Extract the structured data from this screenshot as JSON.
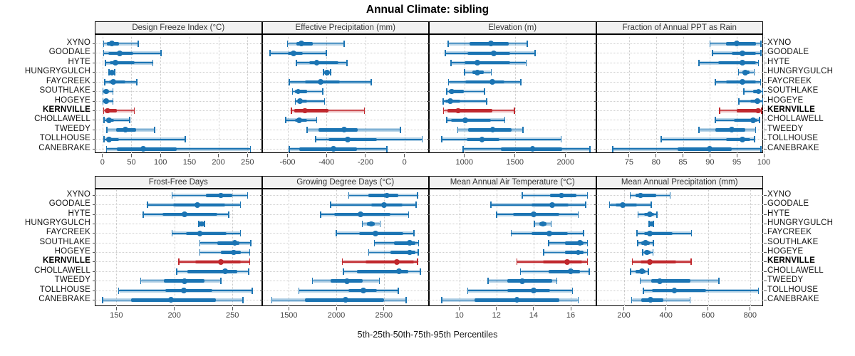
{
  "title": "Annual Climate: sibling",
  "caption": "5th-25th-50th-75th-95th Percentiles",
  "highlight_site": "KERNVILLE",
  "colors": {
    "series": "#1b74b3",
    "highlight": "#c0282d",
    "band_opacity": 0.3,
    "grid": "#c9c9c9",
    "row_guide": "#cfcfcf",
    "header_bg": "#f2f2f2",
    "panel_border": "#000000",
    "tick": "#555555",
    "tick_label": "#404040",
    "header_text": "#333333",
    "site_label": "#111111"
  },
  "chart_data": {
    "type": "scatter",
    "subtype": "percentile-interval-dotplot",
    "layout": "2 rows x 4 columns of panels, shared site rows, site labels on both sides",
    "percentile_levels": [
      5,
      25,
      50,
      75,
      95
    ],
    "legend": "thin line with end caps = 5th-95th, thick line = 25th-75th, dot = 50th (median)",
    "categories": [
      "XYNO",
      "GOODALE",
      "HYTE",
      "HUNGRYGULCH",
      "FAYCREEK",
      "SOUTHLAKE",
      "HOGEYE",
      "KERNVILLE",
      "CHOLLAWELL",
      "TWEEDY",
      "TOLLHOUSE",
      "CANEBRAKE"
    ],
    "panels": [
      {
        "title": "Design Freeze Index (°C)",
        "xlim": [
          -12,
          276
        ],
        "ticks": [
          0,
          50,
          100,
          150,
          200,
          250
        ],
        "values": [
          [
            2,
            8,
            16,
            28,
            62
          ],
          [
            2,
            10,
            30,
            53,
            101
          ],
          [
            5,
            13,
            22,
            55,
            87
          ],
          [
            11,
            14,
            16,
            19,
            21
          ],
          [
            4,
            11,
            19,
            40,
            59
          ],
          [
            1,
            3,
            6,
            10,
            18
          ],
          [
            1,
            3,
            6,
            9,
            18
          ],
          [
            2,
            5,
            9,
            25,
            55
          ],
          [
            3,
            7,
            11,
            20,
            47
          ],
          [
            8,
            24,
            40,
            58,
            90
          ],
          [
            3,
            7,
            11,
            28,
            143
          ],
          [
            7,
            25,
            70,
            128,
            255
          ]
        ]
      },
      {
        "title": "Effective Precipitation (mm)",
        "xlim": [
          -728,
          129
        ],
        "ticks": [
          -600,
          -400,
          -200,
          0
        ],
        "values": [
          [
            -600,
            -555,
            -530,
            -470,
            -310
          ],
          [
            -690,
            -600,
            -570,
            -520,
            -400
          ],
          [
            -555,
            -490,
            -450,
            -340,
            -295
          ],
          [
            -415,
            -402,
            -396,
            -390,
            -378
          ],
          [
            -590,
            -510,
            -430,
            -330,
            -170
          ],
          [
            -575,
            -560,
            -545,
            -500,
            -420
          ],
          [
            -560,
            -545,
            -535,
            -500,
            -410
          ],
          [
            -580,
            -565,
            -510,
            -390,
            -205
          ],
          [
            -610,
            -560,
            -540,
            -500,
            -450
          ],
          [
            -500,
            -440,
            -310,
            -240,
            -20
          ],
          [
            -455,
            -390,
            -290,
            -140,
            90
          ],
          [
            -590,
            -540,
            -365,
            -245,
            -90
          ]
        ]
      },
      {
        "title": "Elevation (m)",
        "xlim": [
          657,
          2308
        ],
        "ticks": [
          1000,
          1500,
          2000
        ],
        "values": [
          [
            840,
            1050,
            1260,
            1440,
            1620
          ],
          [
            810,
            1030,
            1290,
            1450,
            1700
          ],
          [
            870,
            1000,
            1130,
            1450,
            1610
          ],
          [
            1000,
            1080,
            1130,
            1190,
            1265
          ],
          [
            845,
            1010,
            1275,
            1395,
            1560
          ],
          [
            825,
            850,
            875,
            995,
            1200
          ],
          [
            790,
            815,
            860,
            960,
            1220
          ],
          [
            795,
            830,
            940,
            1275,
            1495
          ],
          [
            825,
            870,
            1010,
            1265,
            1400
          ],
          [
            935,
            1040,
            1280,
            1465,
            1580
          ],
          [
            775,
            1020,
            1175,
            1350,
            1955
          ],
          [
            990,
            1360,
            1675,
            1970,
            2240
          ]
        ]
      },
      {
        "title": "Fraction of Annual PPT as Rain",
        "xlim": [
          69,
          100
        ],
        "ticks": [
          75,
          80,
          85,
          90,
          95,
          100
        ],
        "values": [
          [
            90,
            93,
            95,
            98.5,
            99.5
          ],
          [
            90.5,
            94,
            96,
            98.5,
            99.5
          ],
          [
            88,
            91.5,
            96,
            98.5,
            99
          ],
          [
            95.3,
            96,
            96.6,
            97.3,
            98.2
          ],
          [
            91,
            93,
            96,
            98.5,
            99.4
          ],
          [
            96.3,
            98,
            99,
            99.5,
            99.8
          ],
          [
            95.4,
            97.5,
            98.8,
            99.4,
            99.8
          ],
          [
            91.8,
            95,
            98.9,
            99.3,
            99.6
          ],
          [
            91,
            94.5,
            98,
            98.8,
            99.2
          ],
          [
            88,
            91,
            94,
            96.5,
            98.5
          ],
          [
            81,
            93,
            96,
            97.5,
            98.3
          ],
          [
            72,
            84,
            90,
            94,
            99.5
          ]
        ]
      },
      {
        "title": "Frost-Free Days",
        "xlim": [
          132,
          276
        ],
        "ticks": [
          150,
          200,
          250
        ],
        "values": [
          [
            198,
            227,
            240,
            250,
            263
          ],
          [
            177,
            199,
            220,
            244,
            257
          ],
          [
            173,
            190,
            209,
            237,
            247
          ],
          [
            221,
            222.5,
            223.5,
            225,
            226
          ],
          [
            198,
            210,
            222,
            245,
            257
          ],
          [
            222,
            237,
            252,
            256,
            266
          ],
          [
            222,
            240,
            251,
            257,
            265
          ],
          [
            204,
            218,
            240,
            257,
            265
          ],
          [
            202,
            211,
            244,
            254,
            264
          ],
          [
            171,
            191,
            209,
            226,
            240
          ],
          [
            152,
            192,
            208,
            233,
            267
          ],
          [
            138,
            163,
            197,
            236,
            259
          ]
        ]
      },
      {
        "title": "Growing Degree Days (°C)",
        "xlim": [
          1224,
          2982
        ],
        "ticks": [
          1500,
          2000,
          2500
        ],
        "values": [
          [
            2130,
            2340,
            2530,
            2650,
            2855
          ],
          [
            1940,
            2370,
            2505,
            2700,
            2840
          ],
          [
            1835,
            1980,
            2255,
            2570,
            2760
          ],
          [
            2275,
            2320,
            2365,
            2405,
            2460
          ],
          [
            2000,
            2240,
            2410,
            2705,
            2815
          ],
          [
            2400,
            2605,
            2775,
            2830,
            2865
          ],
          [
            2340,
            2570,
            2775,
            2830,
            2860
          ],
          [
            2065,
            2305,
            2640,
            2815,
            2855
          ],
          [
            2075,
            2215,
            2660,
            2755,
            2885
          ],
          [
            1750,
            1940,
            2110,
            2280,
            2455
          ],
          [
            1605,
            2130,
            2285,
            2430,
            2650
          ],
          [
            1320,
            1670,
            2100,
            2500,
            2735
          ]
        ]
      },
      {
        "title": "Mean Annual Air Temperature (°C)",
        "xlim": [
          8.4,
          17.4
        ],
        "ticks": [
          10,
          12,
          14,
          16
        ],
        "values": [
          [
            13.4,
            14.9,
            15.5,
            16.3,
            16.9
          ],
          [
            11.7,
            13.9,
            15.0,
            15.9,
            16.8
          ],
          [
            12.0,
            12.9,
            14.0,
            15.4,
            16.4
          ],
          [
            14.05,
            14.3,
            14.5,
            14.7,
            14.95
          ],
          [
            12.8,
            13.9,
            14.85,
            15.85,
            16.7
          ],
          [
            14.8,
            15.7,
            16.5,
            16.7,
            16.9
          ],
          [
            14.55,
            15.7,
            16.4,
            16.7,
            16.9
          ],
          [
            13.1,
            14.5,
            15.8,
            16.6,
            16.9
          ],
          [
            13.3,
            14.8,
            16.0,
            16.5,
            17.0
          ],
          [
            11.55,
            12.6,
            13.4,
            15.0,
            15.25
          ],
          [
            10.45,
            12.6,
            14.0,
            14.9,
            16.1
          ],
          [
            9.05,
            10.8,
            13.1,
            15.4,
            16.4
          ]
        ]
      },
      {
        "title": "Mean Annual Precipitation (mm)",
        "xlim": [
          71,
          865
        ],
        "ticks": [
          200,
          400,
          600,
          800
        ],
        "values": [
          [
            230,
            255,
            280,
            355,
            420
          ],
          [
            132,
            160,
            195,
            262,
            330
          ],
          [
            268,
            296,
            322,
            344,
            358
          ],
          [
            319,
            325,
            330,
            336,
            341
          ],
          [
            262,
            296,
            324,
            430,
            522
          ],
          [
            266,
            282,
            302,
            324,
            341
          ],
          [
            290,
            299,
            310,
            327,
            338
          ],
          [
            240,
            280,
            322,
            450,
            520
          ],
          [
            232,
            254,
            285,
            302,
            316
          ],
          [
            277,
            330,
            372,
            516,
            652
          ],
          [
            292,
            335,
            440,
            590,
            840
          ],
          [
            237,
            281,
            327,
            388,
            514
          ]
        ]
      }
    ]
  }
}
